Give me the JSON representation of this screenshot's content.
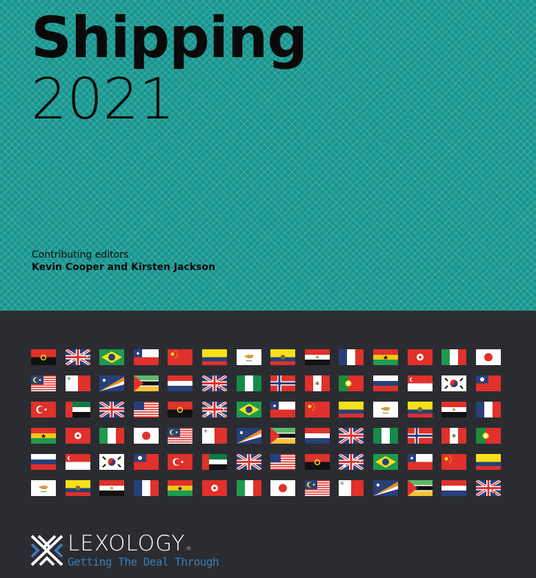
{
  "cover": {
    "title": "Shipping",
    "year": "2021",
    "editors_label": "Contributing editors",
    "editors": "Kevin Cooper and Kirsten Jackson"
  },
  "colors": {
    "teal": "#17968f",
    "dark": "#2b2c31",
    "brand_blue": "#3d7cb8"
  },
  "flags": [
    "angola",
    "australia",
    "brazil",
    "chile",
    "china",
    "colombia",
    "cyprus",
    "ecuador",
    "egypt",
    "france",
    "ghana",
    "hong-kong",
    "italy",
    "japan",
    "malaysia",
    "malta",
    "marshall-islands",
    "mozambique",
    "netherlands",
    "new-zealand",
    "nigeria",
    "norway",
    "peru",
    "portugal",
    "russia",
    "singapore",
    "south-korea",
    "taiwan",
    "turkey",
    "uae",
    "united-kingdom",
    "usa",
    "angola",
    "australia",
    "brazil",
    "chile",
    "china",
    "colombia",
    "cyprus",
    "ecuador",
    "egypt",
    "france",
    "ghana",
    "hong-kong",
    "italy",
    "japan",
    "malaysia",
    "malta",
    "marshall-islands",
    "mozambique",
    "netherlands",
    "new-zealand",
    "nigeria",
    "norway",
    "peru",
    "portugal",
    "russia",
    "singapore",
    "south-korea",
    "taiwan",
    "turkey",
    "uae",
    "united-kingdom",
    "usa",
    "angola",
    "australia",
    "brazil",
    "chile",
    "china",
    "colombia",
    "cyprus",
    "ecuador",
    "egypt",
    "france",
    "ghana",
    "hong-kong",
    "italy",
    "japan",
    "malaysia",
    "malta",
    "marshall-islands",
    "mozambique",
    "netherlands",
    "new-zealand"
  ],
  "logo": {
    "brand": "LEXOLOGY",
    "reg": "®",
    "tagline": "Getting The Deal Through"
  }
}
